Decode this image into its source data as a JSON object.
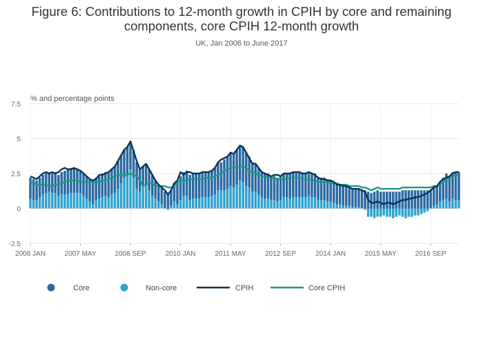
{
  "title_line1": "Figure 6: Contributions to 12-month growth in CPIH by core and remaining",
  "title_line2": "components, core CPIH 12-month growth",
  "subtitle": "UK, Jan 2006 to June 2017",
  "colors": {
    "core": "#2b6aa3",
    "non_core": "#32a4d1",
    "cpih": "#0c3554",
    "core_cpih": "#1c9a82",
    "grid": "#e6e6e6",
    "axis_text": "#666666"
  },
  "chart_data": {
    "type": "bar",
    "ylabel": "% and percentage points",
    "ylim": [
      -2.5,
      7.5
    ],
    "yticks": [
      7.5,
      5,
      2.5,
      0,
      -2.5
    ],
    "ytick_labels": [
      "7.5",
      "5",
      "2.5",
      "0",
      "-2.5"
    ],
    "x_start": "2006-01",
    "x_end": "2017-06",
    "xtick_labels": [
      "2006 JAN",
      "2007 MAY",
      "2008 SEP",
      "2010 JAN",
      "2011 MAY",
      "2012 SEP",
      "2014 JAN",
      "2015 MAY",
      "2016 SEP"
    ],
    "grid": true,
    "legend_position": "bottom",
    "legend": [
      "Core",
      "Non-core",
      "CPIH",
      "Core CPIH"
    ],
    "x": [
      "2006-01",
      "2006-02",
      "2006-03",
      "2006-04",
      "2006-05",
      "2006-06",
      "2006-07",
      "2006-08",
      "2006-09",
      "2006-10",
      "2006-11",
      "2006-12",
      "2007-01",
      "2007-02",
      "2007-03",
      "2007-04",
      "2007-05",
      "2007-06",
      "2007-07",
      "2007-08",
      "2007-09",
      "2007-10",
      "2007-11",
      "2007-12",
      "2008-01",
      "2008-02",
      "2008-03",
      "2008-04",
      "2008-05",
      "2008-06",
      "2008-07",
      "2008-08",
      "2008-09",
      "2008-10",
      "2008-11",
      "2008-12",
      "2009-01",
      "2009-02",
      "2009-03",
      "2009-04",
      "2009-05",
      "2009-06",
      "2009-07",
      "2009-08",
      "2009-09",
      "2009-10",
      "2009-11",
      "2009-12",
      "2010-01",
      "2010-02",
      "2010-03",
      "2010-04",
      "2010-05",
      "2010-06",
      "2010-07",
      "2010-08",
      "2010-09",
      "2010-10",
      "2010-11",
      "2010-12",
      "2011-01",
      "2011-02",
      "2011-03",
      "2011-04",
      "2011-05",
      "2011-06",
      "2011-07",
      "2011-08",
      "2011-09",
      "2011-10",
      "2011-11",
      "2011-12",
      "2012-01",
      "2012-02",
      "2012-03",
      "2012-04",
      "2012-05",
      "2012-06",
      "2012-07",
      "2012-08",
      "2012-09",
      "2012-10",
      "2012-11",
      "2012-12",
      "2013-01",
      "2013-02",
      "2013-03",
      "2013-04",
      "2013-05",
      "2013-06",
      "2013-07",
      "2013-08",
      "2013-09",
      "2013-10",
      "2013-11",
      "2013-12",
      "2014-01",
      "2014-02",
      "2014-03",
      "2014-04",
      "2014-05",
      "2014-06",
      "2014-07",
      "2014-08",
      "2014-09",
      "2014-10",
      "2014-11",
      "2014-12",
      "2015-01",
      "2015-02",
      "2015-03",
      "2015-04",
      "2015-05",
      "2015-06",
      "2015-07",
      "2015-08",
      "2015-09",
      "2015-10",
      "2015-11",
      "2015-12",
      "2016-01",
      "2016-02",
      "2016-03",
      "2016-04",
      "2016-05",
      "2016-06",
      "2016-07",
      "2016-08",
      "2016-09",
      "2016-10",
      "2016-11",
      "2016-12",
      "2017-01",
      "2017-02",
      "2017-03",
      "2017-04",
      "2017-05",
      "2017-06"
    ],
    "series": [
      {
        "name": "Core",
        "type": "bar",
        "values": [
          1.5,
          1.5,
          1.4,
          1.4,
          1.4,
          1.4,
          1.3,
          1.4,
          1.5,
          1.5,
          1.6,
          1.7,
          1.8,
          1.8,
          1.8,
          1.7,
          1.6,
          1.6,
          1.6,
          1.6,
          1.6,
          1.6,
          1.6,
          1.7,
          1.7,
          1.8,
          1.8,
          1.9,
          2.0,
          2.0,
          2.0,
          2.0,
          2.0,
          2.0,
          1.9,
          1.6,
          1.4,
          1.4,
          1.5,
          1.5,
          1.3,
          1.2,
          1.2,
          1.2,
          1.1,
          1.1,
          1.3,
          1.6,
          1.7,
          1.7,
          1.8,
          1.8,
          1.8,
          1.8,
          1.8,
          1.8,
          1.8,
          1.8,
          1.8,
          1.9,
          2.0,
          2.0,
          2.2,
          2.3,
          2.4,
          2.4,
          2.5,
          2.5,
          2.5,
          2.4,
          2.2,
          2.1,
          2.0,
          1.9,
          1.8,
          1.8,
          1.8,
          1.7,
          1.7,
          1.7,
          1.7,
          1.7,
          1.7,
          1.8,
          1.8,
          1.8,
          1.8,
          1.7,
          1.7,
          1.7,
          1.7,
          1.7,
          1.6,
          1.6,
          1.6,
          1.6,
          1.5,
          1.5,
          1.5,
          1.4,
          1.4,
          1.4,
          1.3,
          1.3,
          1.3,
          1.3,
          1.3,
          1.3,
          1.2,
          1.1,
          1.2,
          1.3,
          1.2,
          1.2,
          1.2,
          1.2,
          1.2,
          1.2,
          1.2,
          1.3,
          1.3,
          1.3,
          1.3,
          1.3,
          1.3,
          1.3,
          1.3,
          1.3,
          1.3,
          1.3,
          1.3,
          1.4,
          1.6,
          1.8,
          1.8,
          1.9,
          2.0,
          2.0
        ]
      },
      {
        "name": "Non-core",
        "type": "bar",
        "values": [
          0.7,
          0.6,
          0.6,
          0.8,
          1.0,
          1.1,
          1.2,
          1.1,
          1.1,
          0.9,
          1.0,
          1.0,
          1.0,
          1.1,
          1.1,
          1.1,
          1.1,
          0.9,
          0.7,
          0.5,
          0.3,
          0.6,
          0.7,
          0.8,
          0.9,
          0.8,
          1.0,
          1.1,
          1.4,
          1.8,
          2.2,
          2.4,
          2.8,
          2.2,
          1.4,
          1.2,
          1.6,
          1.7,
          1.3,
          0.9,
          0.7,
          0.5,
          0.3,
          0.0,
          -0.1,
          0.2,
          0.5,
          0.3,
          0.6,
          0.9,
          0.9,
          0.6,
          0.7,
          0.7,
          0.7,
          0.8,
          0.8,
          0.8,
          0.9,
          1.0,
          1.3,
          1.3,
          1.3,
          1.4,
          1.6,
          1.5,
          1.7,
          2.0,
          1.9,
          1.6,
          1.5,
          1.2,
          1.2,
          1.0,
          0.8,
          0.7,
          0.7,
          0.6,
          0.6,
          0.5,
          0.6,
          0.8,
          0.8,
          0.7,
          0.8,
          0.8,
          0.8,
          0.8,
          0.8,
          0.9,
          0.8,
          0.8,
          0.6,
          0.6,
          0.6,
          0.5,
          0.5,
          0.4,
          0.3,
          0.3,
          0.2,
          0.2,
          0.2,
          0.1,
          0.1,
          0.1,
          0.0,
          -0.1,
          -0.6,
          -0.6,
          -0.7,
          -0.6,
          -0.6,
          -0.5,
          -0.6,
          -0.6,
          -0.7,
          -0.6,
          -0.5,
          -0.6,
          -0.7,
          -0.6,
          -0.6,
          -0.5,
          -0.5,
          -0.4,
          -0.3,
          -0.2,
          0.0,
          0.2,
          0.3,
          0.5,
          0.6,
          0.7,
          0.5,
          0.7,
          0.6,
          0.6
        ]
      },
      {
        "name": "CPIH",
        "type": "line",
        "values": [
          2.3,
          2.2,
          2.1,
          2.3,
          2.5,
          2.6,
          2.5,
          2.6,
          2.5,
          2.6,
          2.8,
          2.9,
          2.8,
          2.8,
          2.9,
          2.8,
          2.7,
          2.5,
          2.3,
          2.1,
          2.0,
          2.1,
          2.4,
          2.4,
          2.5,
          2.6,
          2.8,
          3.0,
          3.4,
          3.8,
          4.2,
          4.4,
          4.8,
          4.1,
          3.4,
          2.8,
          3.0,
          3.2,
          2.8,
          2.4,
          2.0,
          1.7,
          1.5,
          1.3,
          1.0,
          1.3,
          1.8,
          2.0,
          2.6,
          2.4,
          2.6,
          2.6,
          2.5,
          2.5,
          2.5,
          2.6,
          2.6,
          2.6,
          2.7,
          2.9,
          3.3,
          3.5,
          3.6,
          3.7,
          4.0,
          3.9,
          4.2,
          4.5,
          4.4,
          4.0,
          3.6,
          3.2,
          3.2,
          2.9,
          2.6,
          2.5,
          2.4,
          2.3,
          2.4,
          2.4,
          2.3,
          2.5,
          2.5,
          2.5,
          2.6,
          2.6,
          2.6,
          2.5,
          2.5,
          2.6,
          2.5,
          2.4,
          2.2,
          2.1,
          2.1,
          2.0,
          2.0,
          1.9,
          1.7,
          1.7,
          1.6,
          1.6,
          1.5,
          1.4,
          1.4,
          1.4,
          1.3,
          1.2,
          0.6,
          0.4,
          0.4,
          0.5,
          0.4,
          0.3,
          0.4,
          0.4,
          0.3,
          0.4,
          0.5,
          0.6,
          0.6,
          0.7,
          0.7,
          0.8,
          0.8,
          0.9,
          1.0,
          1.1,
          1.3,
          1.5,
          1.6,
          1.9,
          2.1,
          2.2,
          2.3,
          2.5,
          2.6,
          2.6
        ]
      },
      {
        "name": "Core CPIH",
        "type": "line",
        "values": [
          1.9,
          1.8,
          1.7,
          1.7,
          1.7,
          1.7,
          1.6,
          1.6,
          1.7,
          1.7,
          1.8,
          1.9,
          2.0,
          2.0,
          2.0,
          2.0,
          1.9,
          1.9,
          1.9,
          1.9,
          1.9,
          1.9,
          1.9,
          2.0,
          2.0,
          2.1,
          2.2,
          2.3,
          2.4,
          2.4,
          2.4,
          2.4,
          2.5,
          2.4,
          2.3,
          2.0,
          1.6,
          1.7,
          1.8,
          1.8,
          1.6,
          1.6,
          1.6,
          1.6,
          1.5,
          1.5,
          1.6,
          1.9,
          2.0,
          2.0,
          2.0,
          2.1,
          2.1,
          2.1,
          2.1,
          2.1,
          2.2,
          2.2,
          2.2,
          2.3,
          2.4,
          2.5,
          2.7,
          2.8,
          2.9,
          2.9,
          3.0,
          3.0,
          3.0,
          2.9,
          2.7,
          2.6,
          2.5,
          2.4,
          2.3,
          2.3,
          2.2,
          2.2,
          2.1,
          2.1,
          2.1,
          2.1,
          2.1,
          2.2,
          2.2,
          2.2,
          2.2,
          2.1,
          2.1,
          2.1,
          2.0,
          2.0,
          1.9,
          1.9,
          1.9,
          1.9,
          1.8,
          1.8,
          1.8,
          1.7,
          1.7,
          1.7,
          1.6,
          1.6,
          1.6,
          1.6,
          1.5,
          1.5,
          1.4,
          1.3,
          1.4,
          1.5,
          1.4,
          1.4,
          1.4,
          1.4,
          1.4,
          1.4,
          1.4,
          1.5,
          1.5,
          1.5,
          1.5,
          1.5,
          1.5,
          1.5,
          1.5,
          1.5,
          1.5,
          1.6,
          1.6,
          1.7,
          1.9,
          2.1,
          2.2,
          2.3,
          2.4,
          2.4
        ]
      }
    ]
  }
}
